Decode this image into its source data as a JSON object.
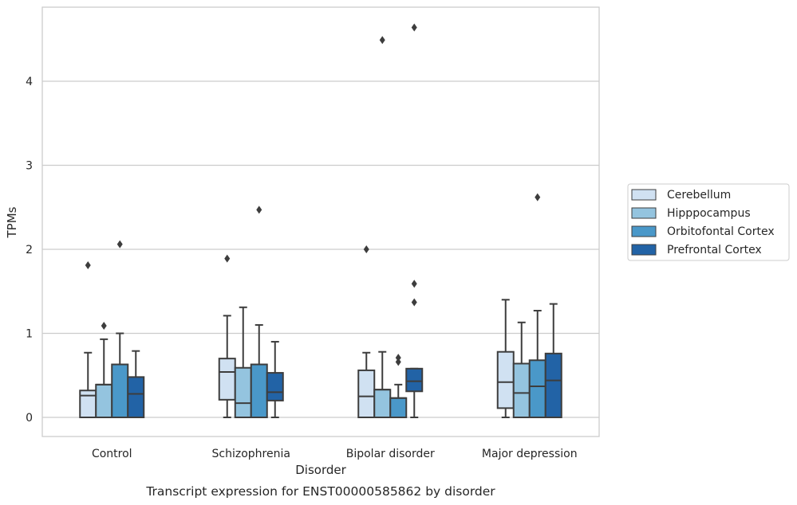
{
  "chart_data": {
    "type": "box",
    "title": "Transcript expression for ENST00000585862 by disorder",
    "xlabel": "Disorder",
    "ylabel": "TPMs",
    "ylim": [
      -0.22,
      4.88
    ],
    "yticks": [
      0,
      1,
      2,
      3,
      4
    ],
    "grid": "horizontal",
    "legend_position": "right",
    "categories": [
      "Control",
      "Schizophrenia",
      "Bipolar disorder",
      "Major depression"
    ],
    "series": [
      {
        "name": "Cerebellum",
        "color": "#d0e1f2",
        "boxes": [
          {
            "whisker_low": 0,
            "q1": 0,
            "median": 0.26,
            "q3": 0.32,
            "whisker_high": 0.77,
            "outliers": [
              1.81
            ]
          },
          {
            "whisker_low": 0,
            "q1": 0.21,
            "median": 0.54,
            "q3": 0.7,
            "whisker_high": 1.21,
            "outliers": [
              1.89
            ]
          },
          {
            "whisker_low": 0,
            "q1": 0,
            "median": 0.25,
            "q3": 0.56,
            "whisker_high": 0.77,
            "outliers": [
              2.0
            ]
          },
          {
            "whisker_low": 0,
            "q1": 0.11,
            "median": 0.42,
            "q3": 0.78,
            "whisker_high": 1.4,
            "outliers": []
          }
        ]
      },
      {
        "name": "Hipppocampus",
        "color": "#94c4df",
        "boxes": [
          {
            "whisker_low": 0,
            "q1": 0,
            "median": 0.39,
            "q3": 0.39,
            "whisker_high": 0.93,
            "outliers": [
              1.09
            ]
          },
          {
            "whisker_low": 0,
            "q1": 0,
            "median": 0.17,
            "q3": 0.59,
            "whisker_high": 1.31,
            "outliers": []
          },
          {
            "whisker_low": 0,
            "q1": 0,
            "median": 0.33,
            "q3": 0.33,
            "whisker_high": 0.78,
            "outliers": [
              4.49
            ]
          },
          {
            "whisker_low": 0,
            "q1": 0,
            "median": 0.29,
            "q3": 0.64,
            "whisker_high": 1.13,
            "outliers": []
          }
        ]
      },
      {
        "name": "Orbitofontal Cortex",
        "color": "#4a98c9",
        "boxes": [
          {
            "whisker_low": 0,
            "q1": 0,
            "median": 0.63,
            "q3": 0.63,
            "whisker_high": 1.0,
            "outliers": [
              2.06
            ]
          },
          {
            "whisker_low": 0,
            "q1": 0,
            "median": 0.63,
            "q3": 0.63,
            "whisker_high": 1.1,
            "outliers": [
              2.47
            ]
          },
          {
            "whisker_low": 0,
            "q1": 0,
            "median": 0.23,
            "q3": 0.23,
            "whisker_high": 0.39,
            "outliers": [
              0.66,
              0.71
            ]
          },
          {
            "whisker_low": 0,
            "q1": 0,
            "median": 0.37,
            "q3": 0.68,
            "whisker_high": 1.27,
            "outliers": [
              2.62
            ]
          }
        ]
      },
      {
        "name": "Prefrontal Cortex",
        "color": "#2263a6",
        "boxes": [
          {
            "whisker_low": 0,
            "q1": 0,
            "median": 0.28,
            "q3": 0.48,
            "whisker_high": 0.79,
            "outliers": []
          },
          {
            "whisker_low": 0,
            "q1": 0.2,
            "median": 0.3,
            "q3": 0.53,
            "whisker_high": 0.9,
            "outliers": []
          },
          {
            "whisker_low": 0,
            "q1": 0.31,
            "median": 0.43,
            "q3": 0.58,
            "whisker_high": 0.58,
            "outliers": [
              1.37,
              1.59,
              4.64
            ]
          },
          {
            "whisker_low": 0,
            "q1": 0,
            "median": 0.44,
            "q3": 0.76,
            "whisker_high": 1.35,
            "outliers": []
          }
        ]
      }
    ]
  }
}
